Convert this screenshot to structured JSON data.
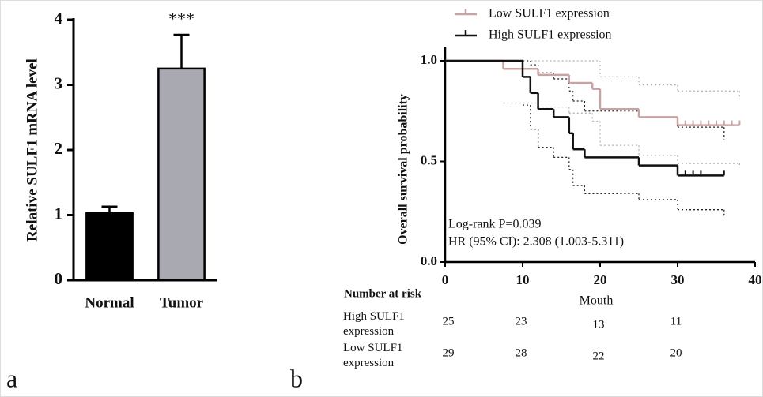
{
  "chart_data": [
    {
      "type": "bar",
      "panel_label": "a",
      "ylabel": "Relative SULF1 mRNA level",
      "categories": [
        "Normal",
        "Tumor"
      ],
      "values": [
        1.03,
        3.25
      ],
      "errors": [
        0.1,
        0.52
      ],
      "colors": [
        "#000000",
        "#a9a9b1"
      ],
      "annotation": "***",
      "ylim": [
        0,
        4
      ],
      "yticks": [
        0,
        1,
        2,
        3,
        4
      ]
    },
    {
      "type": "step",
      "panel_label": "b",
      "xlabel": "Mouth",
      "ylabel": "Overall survival probability",
      "xlim": [
        0,
        40
      ],
      "xticks": [
        0,
        10,
        20,
        30,
        40
      ],
      "ylim": [
        0,
        1
      ],
      "yticks": [
        {
          "value": 0,
          "label": "0.0"
        },
        {
          "value": 0.5,
          "label": "0.5"
        },
        {
          "value": 1,
          "label": "1.0"
        }
      ],
      "annotations": [
        "Log-rank P=0.039",
        "HR (95% CI): 2.308 (1.003-5.311)"
      ],
      "series": [
        {
          "name": "Low SULF1 expression",
          "color": "#c9a3a3",
          "ci_color": "#b5b5b5",
          "x": [
            0,
            7.5,
            12,
            16,
            19,
            20,
            25,
            30,
            38
          ],
          "values": [
            1,
            0.96,
            0.93,
            0.89,
            0.86,
            0.76,
            0.72,
            0.68,
            0.68
          ],
          "ci_upper": [
            null,
            1,
            1,
            1,
            1,
            0.92,
            0.88,
            0.85,
            0.81
          ],
          "ci_lower": [
            null,
            0.79,
            0.77,
            0.74,
            0.7,
            0.58,
            0.53,
            0.49,
            0.47
          ],
          "censored": [
            31,
            32,
            33,
            34,
            35,
            36,
            37,
            38
          ]
        },
        {
          "name": "High SULF1 expression",
          "color": "#111111",
          "ci_color": "#222222",
          "x": [
            0,
            10,
            11,
            12,
            14,
            16,
            16.5,
            18,
            25,
            30,
            36
          ],
          "values": [
            1,
            0.92,
            0.84,
            0.76,
            0.72,
            0.64,
            0.56,
            0.52,
            0.48,
            0.43,
            0.43
          ],
          "ci_upper": [
            null,
            1,
            0.98,
            0.94,
            0.91,
            0.85,
            0.8,
            0.75,
            0.72,
            0.67,
            0.61
          ],
          "ci_lower": [
            null,
            0.78,
            0.66,
            0.57,
            0.52,
            0.46,
            0.38,
            0.34,
            0.31,
            0.26,
            0.23
          ],
          "censored": [
            31,
            32,
            33,
            36
          ]
        }
      ],
      "risk_table": {
        "title": "Number at risk",
        "rows": [
          {
            "label": "High SULF1 expression",
            "values": [
              25,
              23,
              13,
              11
            ]
          },
          {
            "label": "Low SULF1 expression",
            "values": [
              29,
              28,
              22,
              20
            ]
          }
        ]
      }
    }
  ]
}
